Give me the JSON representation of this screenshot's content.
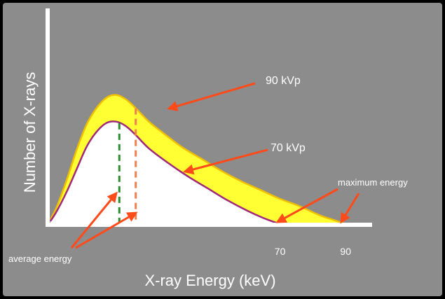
{
  "colors": {
    "background": "#8c8c8c",
    "series_90_fill": "#ffff33",
    "series_90_line": "#f0c000",
    "series_70_fill": "#ffffff",
    "series_70_line": "#a0287a",
    "avg_line_70": "#2e8b2e",
    "avg_line_90": "#f08050",
    "arrow": "#ff4a1a",
    "axis": "#ffffff",
    "text": "#ffffff"
  },
  "chart_data": {
    "type": "area",
    "xlabel": "X-ray Energy (keV)",
    "ylabel": "Number of X-rays",
    "xlim": [
      0,
      100
    ],
    "ylim": [
      0,
      100
    ],
    "x_ticks": [
      {
        "value": 70,
        "label": "70"
      },
      {
        "value": 90,
        "label": "90"
      }
    ],
    "series": [
      {
        "name": "90 kVp",
        "x": [
          0,
          2,
          5,
          8,
          11,
          14,
          17,
          20,
          23,
          26,
          30,
          34,
          40,
          46,
          52,
          58,
          64,
          70,
          76,
          82,
          86,
          90
        ],
        "y": [
          3,
          12,
          30,
          50,
          67,
          78,
          85,
          87,
          84,
          78,
          69,
          62,
          52,
          44,
          36,
          29,
          23,
          17,
          12,
          6,
          3,
          0
        ]
      },
      {
        "name": "70 kVp",
        "x": [
          0,
          2,
          5,
          8,
          11,
          14,
          17,
          20,
          23,
          26,
          30,
          36,
          42,
          48,
          54,
          60,
          65,
          70
        ],
        "y": [
          2,
          9,
          22,
          37,
          52,
          62,
          68,
          69,
          66,
          60,
          51,
          41,
          32,
          24,
          16,
          9,
          4,
          0
        ]
      }
    ],
    "average_markers": [
      {
        "series": "70 kVp",
        "x": 21,
        "y": 68
      },
      {
        "series": "90 kVp",
        "x": 26,
        "y": 78
      }
    ],
    "annotations": [
      {
        "text": "90 kVp",
        "points_to": "90 kVp curve"
      },
      {
        "text": "70 kVp",
        "points_to": "70 kVp curve"
      },
      {
        "text": "maximum energy",
        "points_to": "70 and 90 keV endpoints"
      },
      {
        "text": "average energy",
        "points_to": "average energy lines"
      }
    ]
  }
}
